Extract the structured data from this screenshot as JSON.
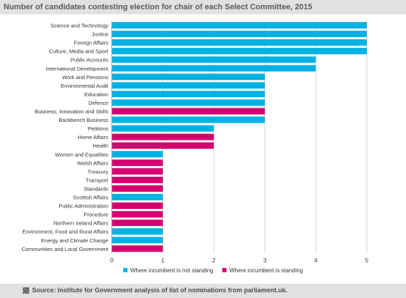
{
  "title": "Number of candidates contesting election for chair of each Select Committee, 2015",
  "source": "Source: Institute for Government analysis of list of nominations from parliament.uk.",
  "colors": {
    "not_standing": "#00b2e3",
    "standing": "#d4006f",
    "grid": "#d9d9d9",
    "axis": "#999999",
    "text": "#333333"
  },
  "chart_data": {
    "type": "bar",
    "orientation": "horizontal",
    "xlim": [
      0,
      5
    ],
    "xticks": [
      0,
      1,
      2,
      3,
      4,
      5
    ],
    "grid": true,
    "legend_position": "bottom",
    "legend": [
      {
        "key": "not_standing",
        "label": "Where incumbent is not standing"
      },
      {
        "key": "standing",
        "label": "Where incumbent is standing"
      }
    ],
    "bars": [
      {
        "label": "Science and Technology",
        "value": 5,
        "group": "not_standing"
      },
      {
        "label": "Justice",
        "value": 5,
        "group": "not_standing"
      },
      {
        "label": "Foreign Affairs",
        "value": 5,
        "group": "not_standing"
      },
      {
        "label": "Culture, Media and Sport",
        "value": 5,
        "group": "not_standing"
      },
      {
        "label": "Public Accounts",
        "value": 4,
        "group": "not_standing"
      },
      {
        "label": "International Development",
        "value": 4,
        "group": "not_standing"
      },
      {
        "label": "Work and Pensions",
        "value": 3,
        "group": "not_standing"
      },
      {
        "label": "Environmental Audit",
        "value": 3,
        "group": "not_standing"
      },
      {
        "label": "Education",
        "value": 3,
        "group": "not_standing"
      },
      {
        "label": "Defence",
        "value": 3,
        "group": "not_standing"
      },
      {
        "label": "Business, Innovation and Skills",
        "value": 3,
        "group": "standing"
      },
      {
        "label": "Backbench Business",
        "value": 3,
        "group": "not_standing"
      },
      {
        "label": "Petitions",
        "value": 2,
        "group": "not_standing"
      },
      {
        "label": "Home Affairs",
        "value": 2,
        "group": "standing"
      },
      {
        "label": "Health",
        "value": 2,
        "group": "standing"
      },
      {
        "label": "Women and Equalities",
        "value": 1,
        "group": "not_standing"
      },
      {
        "label": "Welsh Affairs",
        "value": 1,
        "group": "standing"
      },
      {
        "label": "Treasury",
        "value": 1,
        "group": "standing"
      },
      {
        "label": "Transport",
        "value": 1,
        "group": "standing"
      },
      {
        "label": "Standards",
        "value": 1,
        "group": "standing"
      },
      {
        "label": "Scottish Affairs",
        "value": 1,
        "group": "not_standing"
      },
      {
        "label": "Public Administration",
        "value": 1,
        "group": "standing"
      },
      {
        "label": "Procedure",
        "value": 1,
        "group": "standing"
      },
      {
        "label": "Northern Ireland Affairs",
        "value": 1,
        "group": "standing"
      },
      {
        "label": "Environment, Food and Rural Affairs",
        "value": 1,
        "group": "not_standing"
      },
      {
        "label": "Energy and Climate Change",
        "value": 1,
        "group": "not_standing"
      },
      {
        "label": "Communities and Local Government",
        "value": 1,
        "group": "standing"
      }
    ]
  }
}
